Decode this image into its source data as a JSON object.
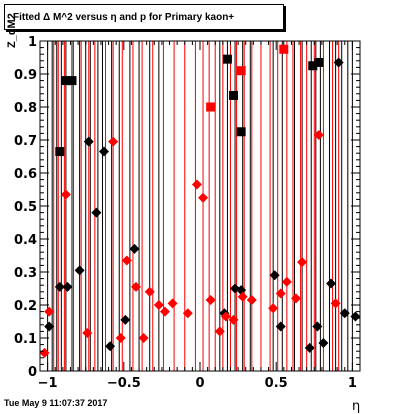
{
  "chart_data": {
    "type": "scatter",
    "title": "Fitted Δ M^2 versus η and p for Primary kaon+",
    "xlabel": "η",
    "ylabel": "Z_dM2",
    "xlim": [
      -1.05,
      1.05
    ],
    "ylim": [
      0,
      1
    ],
    "x_ticks": [
      "−1",
      "−0.5",
      "0",
      "0.5",
      "1"
    ],
    "y_ticks": [
      "0",
      "0.1",
      "0.2",
      "0.3",
      "0.4",
      "0.5",
      "0.6",
      "0.7",
      "0.8",
      "0.9",
      "1"
    ],
    "colors": {
      "black_series": "#000000",
      "red_series": "#ff0000"
    },
    "black_vlines": [
      -1.0,
      -0.97,
      -0.94,
      -0.91,
      -0.88,
      -0.84,
      -0.79,
      -0.75,
      -0.72,
      -0.67,
      -0.64,
      -0.58,
      -0.53,
      -0.46,
      -0.4,
      -0.33,
      -0.27,
      0.13,
      0.18,
      0.23,
      0.28,
      0.33,
      0.48,
      0.54,
      0.62,
      0.67,
      0.73,
      0.76,
      0.79,
      0.85,
      0.89,
      0.93,
      0.97,
      1.0
    ],
    "red_vlines": [
      -0.96,
      -0.93,
      -0.89,
      -0.83,
      -0.78,
      -0.73,
      -0.69,
      -0.62,
      -0.57,
      -0.51,
      -0.44,
      -0.38,
      -0.31,
      -0.24,
      -0.17,
      -0.1,
      -0.03,
      0.02,
      0.06,
      0.1,
      0.15,
      0.2,
      0.24,
      0.29,
      0.34,
      0.4,
      0.46,
      0.51,
      0.57,
      0.61,
      0.66,
      0.7,
      0.75,
      0.81,
      0.87,
      0.91
    ],
    "series": [
      {
        "color": "black",
        "marker": "diamond",
        "points": [
          [
            -0.99,
            0.135
          ],
          [
            -0.92,
            0.255
          ],
          [
            -0.87,
            0.255
          ],
          [
            -0.79,
            0.305
          ],
          [
            -0.73,
            0.695
          ],
          [
            -0.68,
            0.48
          ],
          [
            -0.63,
            0.665
          ],
          [
            -0.59,
            0.075
          ],
          [
            -0.49,
            0.155
          ],
          [
            -0.43,
            0.37
          ],
          [
            0.16,
            0.175
          ],
          [
            0.23,
            0.25
          ],
          [
            0.27,
            0.245
          ],
          [
            0.49,
            0.29
          ],
          [
            0.53,
            0.135
          ],
          [
            0.72,
            0.07
          ],
          [
            0.77,
            0.135
          ],
          [
            0.81,
            0.085
          ],
          [
            0.86,
            0.265
          ],
          [
            0.91,
            0.935
          ],
          [
            0.95,
            0.175
          ],
          [
            1.02,
            0.165
          ]
        ]
      },
      {
        "color": "red",
        "marker": "diamond",
        "points": [
          [
            -1.02,
            0.055
          ],
          [
            -0.99,
            0.18
          ],
          [
            -0.88,
            0.535
          ],
          [
            -0.74,
            0.115
          ],
          [
            -0.57,
            0.695
          ],
          [
            -0.52,
            0.1
          ],
          [
            -0.48,
            0.335
          ],
          [
            -0.42,
            0.255
          ],
          [
            -0.37,
            0.1
          ],
          [
            -0.33,
            0.24
          ],
          [
            -0.27,
            0.2
          ],
          [
            -0.23,
            0.18
          ],
          [
            -0.18,
            0.205
          ],
          [
            -0.08,
            0.175
          ],
          [
            -0.02,
            0.565
          ],
          [
            0.02,
            0.525
          ],
          [
            0.07,
            0.215
          ],
          [
            0.13,
            0.12
          ],
          [
            0.17,
            0.165
          ],
          [
            0.22,
            0.155
          ],
          [
            0.28,
            0.225
          ],
          [
            0.34,
            0.215
          ],
          [
            0.48,
            0.19
          ],
          [
            0.53,
            0.235
          ],
          [
            0.57,
            0.27
          ],
          [
            0.63,
            0.22
          ],
          [
            0.67,
            0.33
          ],
          [
            0.78,
            0.715
          ],
          [
            0.89,
            0.205
          ]
        ]
      },
      {
        "color": "black",
        "marker": "square",
        "points": [
          [
            -0.92,
            0.665
          ],
          [
            -0.88,
            0.88
          ],
          [
            -0.84,
            0.88
          ],
          [
            0.18,
            0.945
          ],
          [
            0.22,
            0.835
          ],
          [
            0.27,
            0.725
          ],
          [
            0.74,
            0.925
          ],
          [
            0.78,
            0.935
          ]
        ]
      },
      {
        "color": "red",
        "marker": "square",
        "points": [
          [
            0.07,
            0.8
          ],
          [
            0.27,
            0.91
          ],
          [
            0.55,
            0.975
          ]
        ]
      }
    ]
  },
  "footer_text": "Tue May  9 11:07:37 2017"
}
